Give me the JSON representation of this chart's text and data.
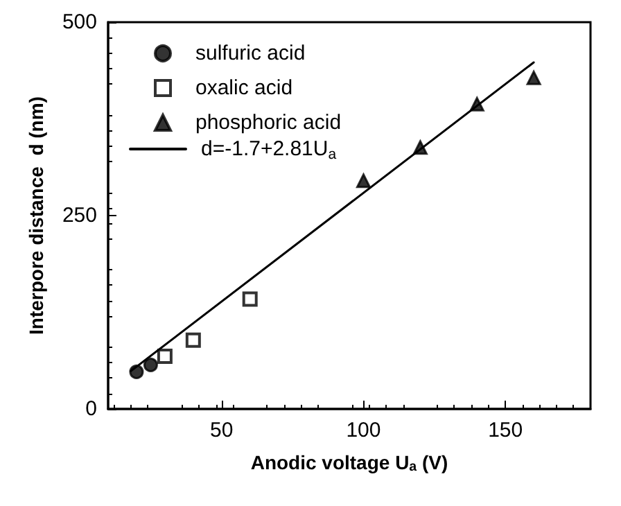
{
  "chart_data": {
    "type": "scatter",
    "xlabel": "Anodic voltage U$_{a}$ (V)",
    "ylabel": "Interpore distance  d (nm)",
    "xlim": [
      10,
      180
    ],
    "xticks": [
      50,
      100,
      150
    ],
    "ylim": [
      0,
      500
    ],
    "yticks": [
      0,
      250,
      500
    ],
    "grid": false,
    "legend": "top left",
    "series": [
      {
        "name": "sulfuric acid",
        "color": "#000000",
        "marker": "circle",
        "x": [
          20,
          25
        ],
        "values": [
          48,
          57
        ]
      },
      {
        "name": "oxalic acid",
        "color": "#000000",
        "marker": "square",
        "x": [
          30,
          40,
          60
        ],
        "values": [
          68,
          89,
          142
        ]
      },
      {
        "name": "phosphoric acid",
        "color": "#000000",
        "marker": "triangle",
        "x": [
          100,
          120,
          140,
          160
        ],
        "values": [
          295,
          338,
          394,
          428
        ]
      },
      {
        "name": "d=-1.7+2.81U$_{a}$",
        "type": "line",
        "color": "#000000",
        "marker": "none",
        "line_style": "solid",
        "x": [
          18,
          160
        ],
        "values": [
          49,
          448
        ]
      }
    ]
  }
}
